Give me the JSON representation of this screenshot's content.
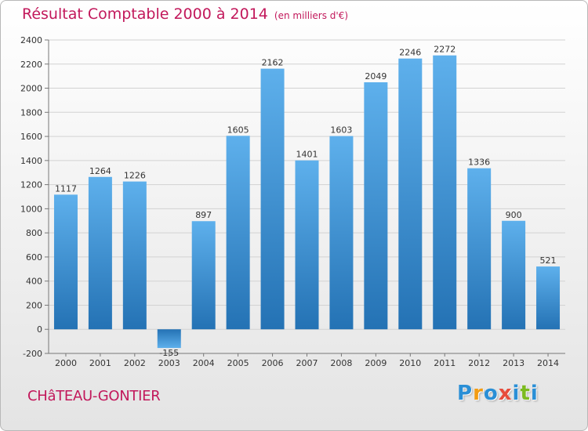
{
  "chart_data": {
    "type": "bar",
    "title": "Résultat Comptable 2000 à 2014",
    "unit": "(en milliers d'€)",
    "categories": [
      "2000",
      "2001",
      "2002",
      "2003",
      "2004",
      "2005",
      "2006",
      "2007",
      "2008",
      "2009",
      "2010",
      "2011",
      "2012",
      "2013",
      "2014"
    ],
    "values": [
      1117,
      1264,
      1226,
      -155,
      897,
      1605,
      2162,
      1401,
      1603,
      2049,
      2246,
      2272,
      1336,
      900,
      521
    ],
    "data_labels": [
      "1117",
      "1264",
      "1226",
      "-155",
      "897",
      "1605",
      "2162",
      "1401",
      "1603",
      "2049",
      "2246",
      "2272",
      "1336",
      "900",
      "521"
    ],
    "ylim": [
      -200,
      2400
    ],
    "yticks": [
      -200,
      0,
      200,
      400,
      600,
      800,
      1000,
      1200,
      1400,
      1600,
      1800,
      2000,
      2200,
      2400
    ],
    "grid": true,
    "bar_color": "#3c95d8",
    "title_color": "#c2185b"
  },
  "location": "CHâTEAU-GONTIER",
  "logo": {
    "letters": [
      "P",
      "r",
      "o",
      "x",
      "i",
      "t",
      "i"
    ],
    "colors": [
      "#2a8fd6",
      "#f39c12",
      "#2a8fd6",
      "#e74c3c",
      "#2a8fd6",
      "#7cbb1f",
      "#2a8fd6"
    ]
  }
}
